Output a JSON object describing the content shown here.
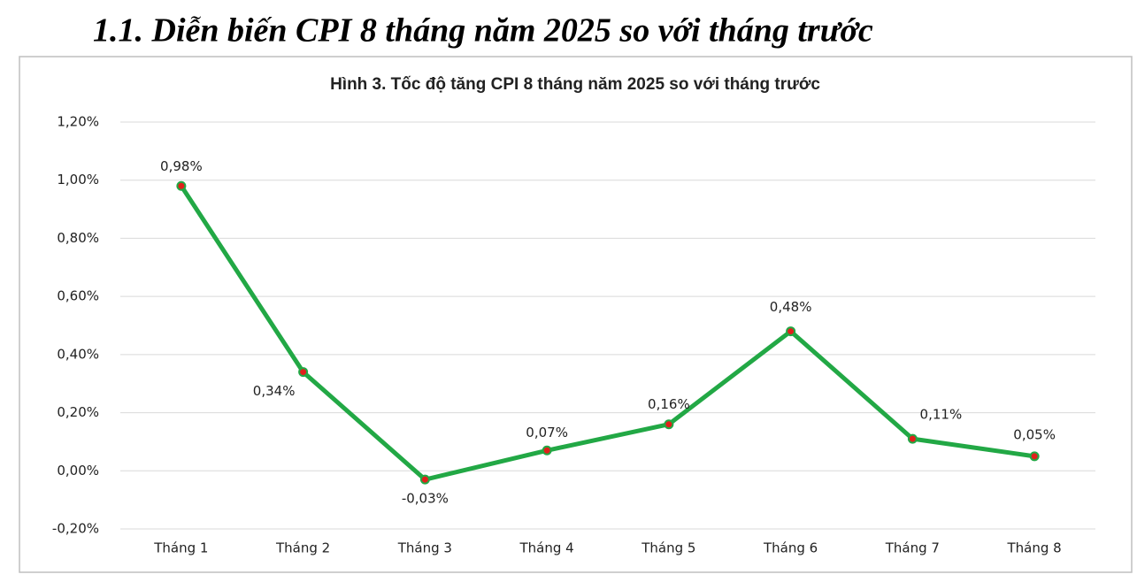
{
  "heading": "1.1. Diễn biến CPI 8 tháng năm 2025 so với tháng trước",
  "chart_data": {
    "type": "line",
    "title": "Hình 3. Tốc độ tăng CPI 8 tháng năm 2025 so với tháng trước",
    "categories": [
      "Tháng 1",
      "Tháng 2",
      "Tháng 3",
      "Tháng 4",
      "Tháng 5",
      "Tháng 6",
      "Tháng 7",
      "Tháng 8"
    ],
    "values": [
      0.98,
      0.34,
      -0.03,
      0.07,
      0.16,
      0.48,
      0.11,
      0.05
    ],
    "value_labels": [
      "0,98%",
      "0,34%",
      "-0,03%",
      "0,07%",
      "0,16%",
      "0,48%",
      "0,11%",
      "0,05%"
    ],
    "color": "#22a845",
    "marker_color": "#e0201b",
    "ylim": [
      -0.2,
      1.2
    ],
    "yticks": [
      {
        "value": -0.2,
        "label": "-0,20%"
      },
      {
        "value": 0,
        "label": "0,00%"
      },
      {
        "value": 0.2,
        "label": "0,20%"
      },
      {
        "value": 0.4,
        "label": "0,40%"
      },
      {
        "value": 0.6,
        "label": "0,60%"
      },
      {
        "value": 0.8,
        "label": "0,80%"
      },
      {
        "value": 1.0,
        "label": "1,00%"
      },
      {
        "value": 1.2,
        "label": "1,20%"
      }
    ],
    "grid": true
  }
}
